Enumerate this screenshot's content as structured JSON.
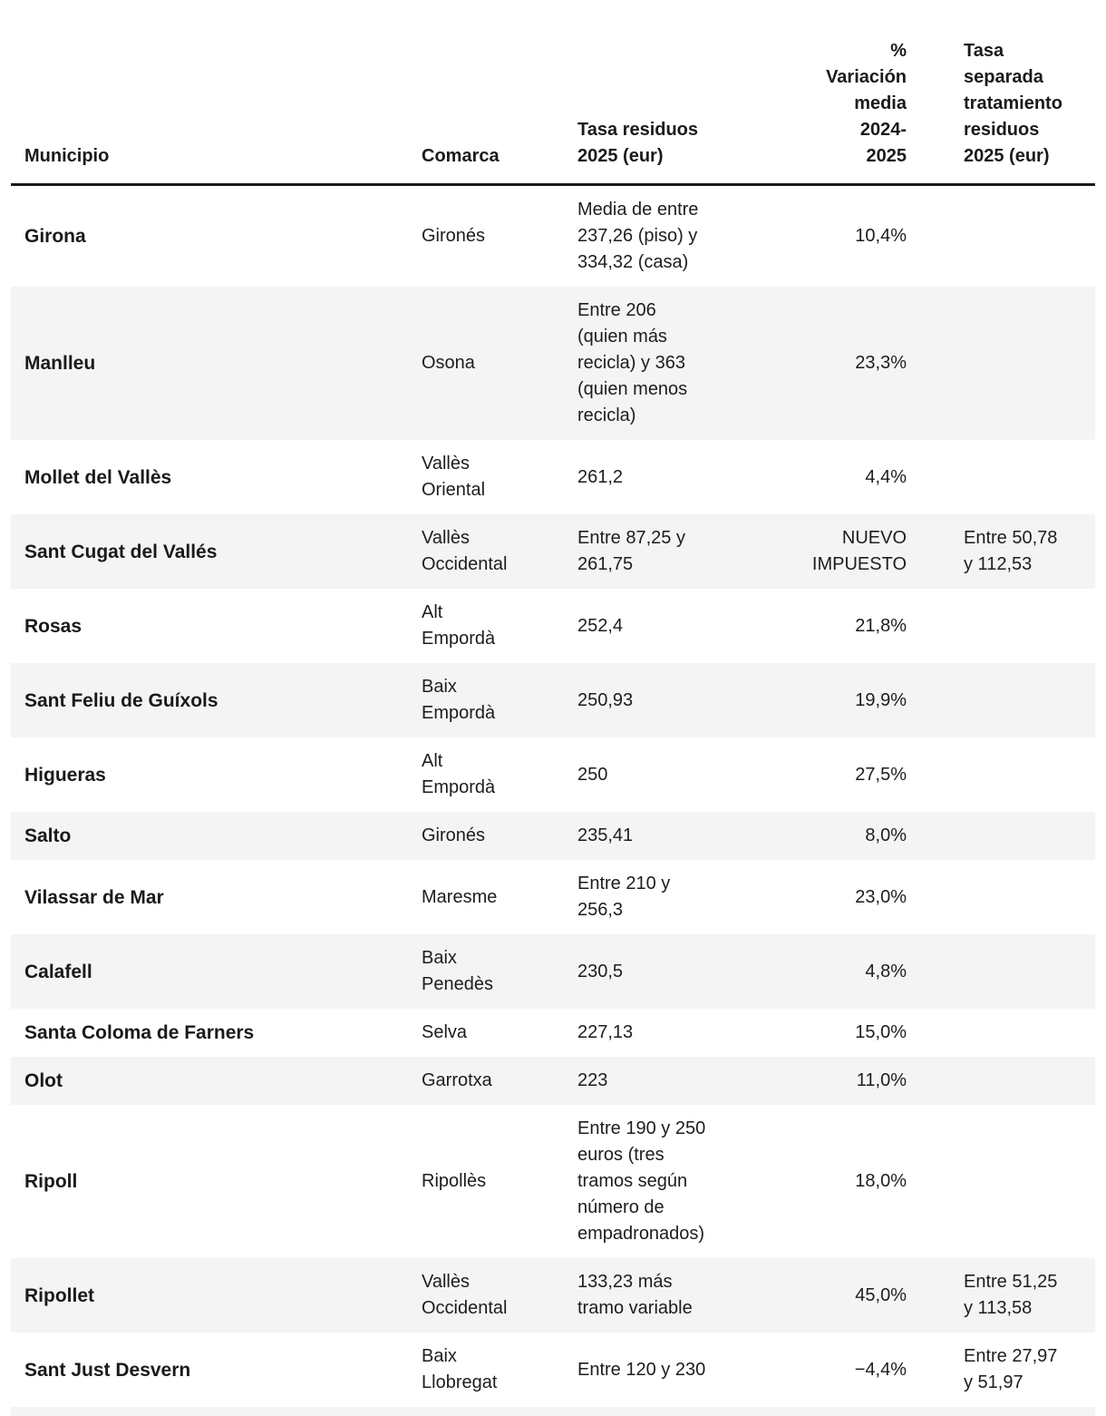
{
  "colors": {
    "stripe_row_background": "#f4f4f4",
    "header_rule": "#1a1a1a",
    "text": "#1d1d1d"
  },
  "chart_data": {
    "type": "table",
    "title": "",
    "columns": [
      {
        "key": "municipio",
        "label": "Municipio",
        "align": "left"
      },
      {
        "key": "comarca",
        "label": "Comarca",
        "align": "left"
      },
      {
        "key": "tasa",
        "label": "Tasa residuos\n2025 (eur)",
        "align": "left"
      },
      {
        "key": "variacion",
        "label": "%\nVariación\nmedia\n2024-\n2025",
        "align": "right"
      },
      {
        "key": "separada",
        "label": "Tasa\nseparada\ntratamiento\nresiduos\n2025 (eur)",
        "align": "left"
      }
    ],
    "rows": [
      {
        "cells": [
          "Girona",
          "Gironés",
          "Media de entre\n237,26 (piso) y\n334,32 (casa)",
          "10,4%",
          ""
        ]
      },
      {
        "cells": [
          "Manlleu",
          "Osona",
          "Entre 206\n(quien más\nrecicla) y 363\n(quien menos\nrecicla)",
          "23,3%",
          ""
        ]
      },
      {
        "cells": [
          "Mollet del Vallès",
          "Vallès\nOriental",
          "261,2",
          "4,4%",
          ""
        ]
      },
      {
        "cells": [
          "Sant Cugat del Vallés",
          "Vallès\nOccidental",
          "Entre 87,25 y\n261,75",
          "NUEVO\nIMPUESTO",
          "Entre 50,78\ny 112,53"
        ]
      },
      {
        "cells": [
          "Rosas",
          "Alt\nEmpordà",
          "252,4",
          "21,8%",
          ""
        ]
      },
      {
        "cells": [
          "Sant Feliu de Guíxols",
          "Baix\nEmpordà",
          "250,93",
          "19,9%",
          ""
        ]
      },
      {
        "cells": [
          "Higueras",
          "Alt\nEmpordà",
          "250",
          "27,5%",
          ""
        ]
      },
      {
        "cells": [
          "Salto",
          "Gironés",
          "235,41",
          "8,0%",
          ""
        ]
      },
      {
        "cells": [
          "Vilassar de Mar",
          "Maresme",
          "Entre 210 y\n256,3",
          "23,0%",
          ""
        ]
      },
      {
        "cells": [
          "Calafell",
          "Baix\nPenedès",
          "230,5",
          "4,8%",
          ""
        ]
      },
      {
        "cells": [
          "Santa Coloma de Farners",
          "Selva",
          "227,13",
          "15,0%",
          ""
        ]
      },
      {
        "cells": [
          "Olot",
          "Garrotxa",
          "223",
          "11,0%",
          ""
        ]
      },
      {
        "cells": [
          "Ripoll",
          "Ripollès",
          "Entre 190 y 250\neuros (tres\ntramos según\nnúmero de\nempadronados)",
          "18,0%",
          ""
        ]
      },
      {
        "cells": [
          "Ripollet",
          "Vallès\nOccidental",
          "133,23 más\ntramo variable",
          "45,0%",
          "Entre 51,25\ny 113,58"
        ]
      },
      {
        "cells": [
          "Sant Just Desvern",
          "Baix\nLlobregat",
          "Entre 120 y 230",
          "−4,4%",
          "Entre 27,97\ny 51,97"
        ]
      }
    ]
  }
}
